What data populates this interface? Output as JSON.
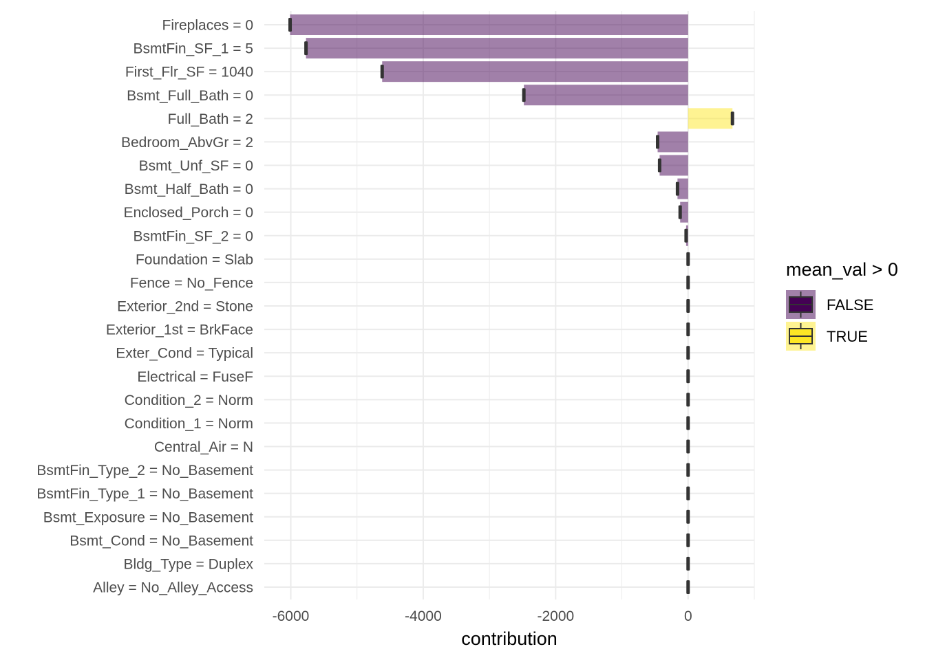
{
  "chart_data": {
    "type": "bar",
    "orientation": "horizontal",
    "xlabel": "contribution",
    "ylabel": "",
    "xlim": [
      -6400,
      1000
    ],
    "x_ticks": [
      {
        "value": -6000,
        "label": "-6000"
      },
      {
        "value": -4000,
        "label": "-4000"
      },
      {
        "value": -2000,
        "label": "-2000"
      },
      {
        "value": 0,
        "label": "0"
      }
    ],
    "minor_ticks": [
      -5000,
      -3000,
      -1000,
      1000
    ],
    "grid": true,
    "legend": {
      "title": "mean_val > 0",
      "position": "right",
      "entries": [
        {
          "label": "FALSE",
          "color": "#440154"
        },
        {
          "label": "TRUE",
          "color": "#FDE725"
        }
      ]
    },
    "categories": [
      "Fireplaces = 0",
      "BsmtFin_SF_1 = 5",
      "First_Flr_SF = 1040",
      "Bsmt_Full_Bath = 0",
      "Full_Bath = 2",
      "Bedroom_AbvGr = 2",
      "Bsmt_Unf_SF = 0",
      "Bsmt_Half_Bath = 0",
      "Enclosed_Porch = 0",
      "BsmtFin_SF_2 = 0",
      "Foundation = Slab",
      "Fence = No_Fence",
      "Exterior_2nd = Stone",
      "Exterior_1st = BrkFace",
      "Exter_Cond = Typical",
      "Electrical = FuseF",
      "Condition_2 = Norm",
      "Condition_1 = Norm",
      "Central_Air = N",
      "BsmtFin_Type_2 = No_Basement",
      "BsmtFin_Type_1 = No_Basement",
      "Bsmt_Exposure = No_Basement",
      "Bsmt_Cond = No_Basement",
      "Bldg_Type = Duplex",
      "Alley = No_Alley_Access"
    ],
    "values": [
      -6010,
      -5770,
      -4620,
      -2480,
      670,
      -460,
      -430,
      -160,
      -120,
      -30,
      0,
      0,
      0,
      0,
      0,
      0,
      0,
      0,
      0,
      0,
      0,
      0,
      0,
      0,
      0
    ],
    "positive": [
      false,
      false,
      false,
      false,
      true,
      false,
      false,
      false,
      false,
      false,
      false,
      false,
      false,
      false,
      false,
      false,
      false,
      false,
      false,
      false,
      false,
      false,
      false,
      false,
      false
    ],
    "bar_opacity": 0.5,
    "box_color": "#333333"
  }
}
